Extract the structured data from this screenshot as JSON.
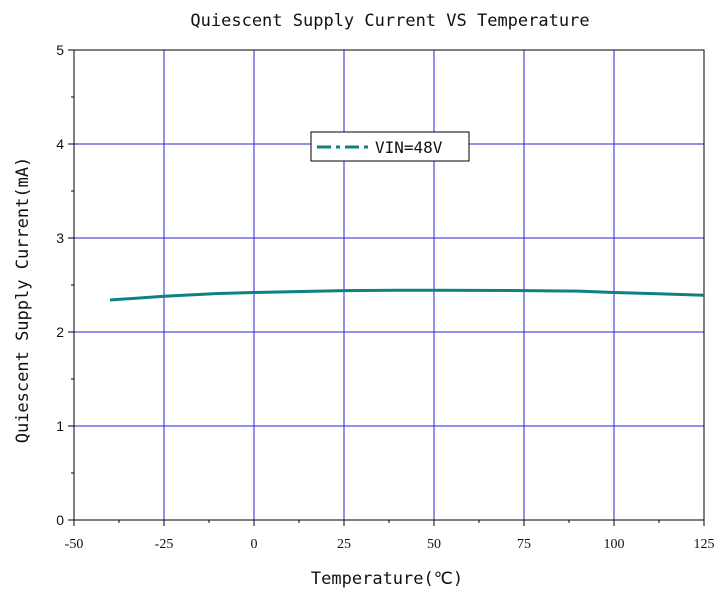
{
  "chart_data": {
    "type": "line",
    "title": "Quiescent Supply Current VS Temperature",
    "xlabel": "Temperature(℃)",
    "ylabel": "Quiescent Supply Current(mA)",
    "xlim": [
      -50,
      125
    ],
    "ylim": [
      0,
      5
    ],
    "xticks": [
      -50,
      -25,
      0,
      25,
      50,
      75,
      100,
      125
    ],
    "yticks": [
      0,
      1,
      2,
      3,
      4,
      5
    ],
    "grid": true,
    "legend_position": "top-center",
    "series": [
      {
        "name": "VIN=48V",
        "color": "#0f7f7f",
        "line_style": "dash-dot",
        "x": [
          -40,
          -25,
          -10,
          0,
          25,
          40,
          50,
          75,
          90,
          100,
          110,
          125
        ],
        "y": [
          2.34,
          2.38,
          2.41,
          2.42,
          2.44,
          2.445,
          2.445,
          2.44,
          2.435,
          2.42,
          2.41,
          2.39
        ]
      }
    ],
    "colors": {
      "grid": "#2323d6",
      "frame": "#000000"
    }
  }
}
